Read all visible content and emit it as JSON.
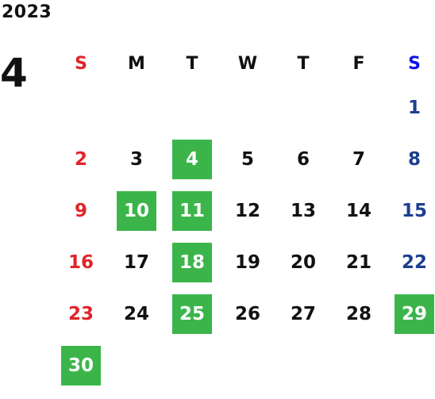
{
  "calendar": {
    "year": "2023",
    "month": "4",
    "weekdays": [
      "S",
      "M",
      "T",
      "W",
      "T",
      "F",
      "S"
    ],
    "leading_blanks": 6,
    "days": [
      "1",
      "2",
      "3",
      "4",
      "5",
      "6",
      "7",
      "8",
      "9",
      "10",
      "11",
      "12",
      "13",
      "14",
      "15",
      "16",
      "17",
      "18",
      "19",
      "20",
      "21",
      "22",
      "23",
      "24",
      "25",
      "26",
      "27",
      "28",
      "29",
      "30"
    ],
    "highlighted_days": [
      "4",
      "10",
      "11",
      "18",
      "25",
      "29",
      "30"
    ],
    "colors": {
      "sunday": "#e0242b",
      "saturday_header": "#1010e8",
      "saturday": "#1d3f8f",
      "highlight": "#3bb54a",
      "text": "#111111"
    }
  }
}
